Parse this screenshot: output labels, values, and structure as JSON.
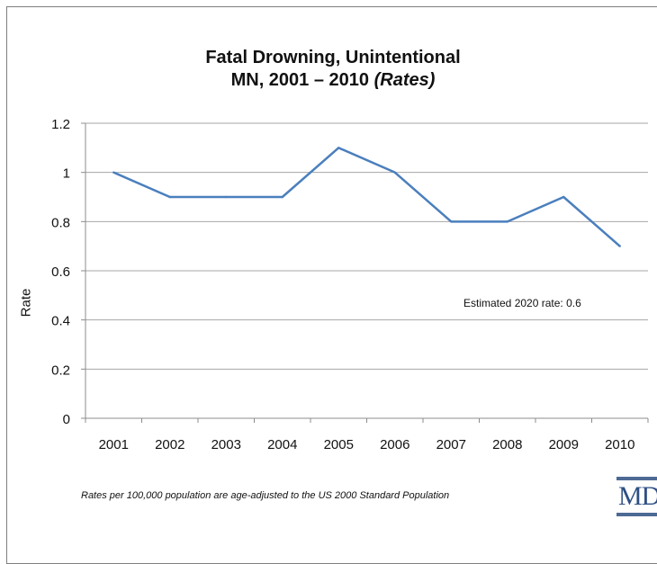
{
  "chart_data": {
    "type": "line",
    "title_line1": "Fatal Drowning, Unintentional",
    "title_line2_main": "MN, 2001 – 2010",
    "title_line2_italic": "(Rates)",
    "xlabel": "",
    "ylabel": "Rate",
    "ylim": [
      0,
      1.2
    ],
    "y_ticks": [
      "0",
      "0.2",
      "0.4",
      "0.6",
      "0.8",
      "1",
      "1.2"
    ],
    "grid": true,
    "categories": [
      "2001",
      "2002",
      "2003",
      "2004",
      "2005",
      "2006",
      "2007",
      "2008",
      "2009",
      "2010"
    ],
    "series": [
      {
        "values": [
          1.0,
          0.9,
          0.9,
          0.9,
          1.1,
          1.0,
          0.8,
          0.8,
          0.9,
          0.7
        ],
        "color": "#4a7fbd"
      }
    ],
    "annotation": "Estimated 2020 rate: 0.6"
  },
  "footnote": "Rates per 100,000 population are age-adjusted to the US 2000 Standard Population",
  "logo_text": "MD"
}
